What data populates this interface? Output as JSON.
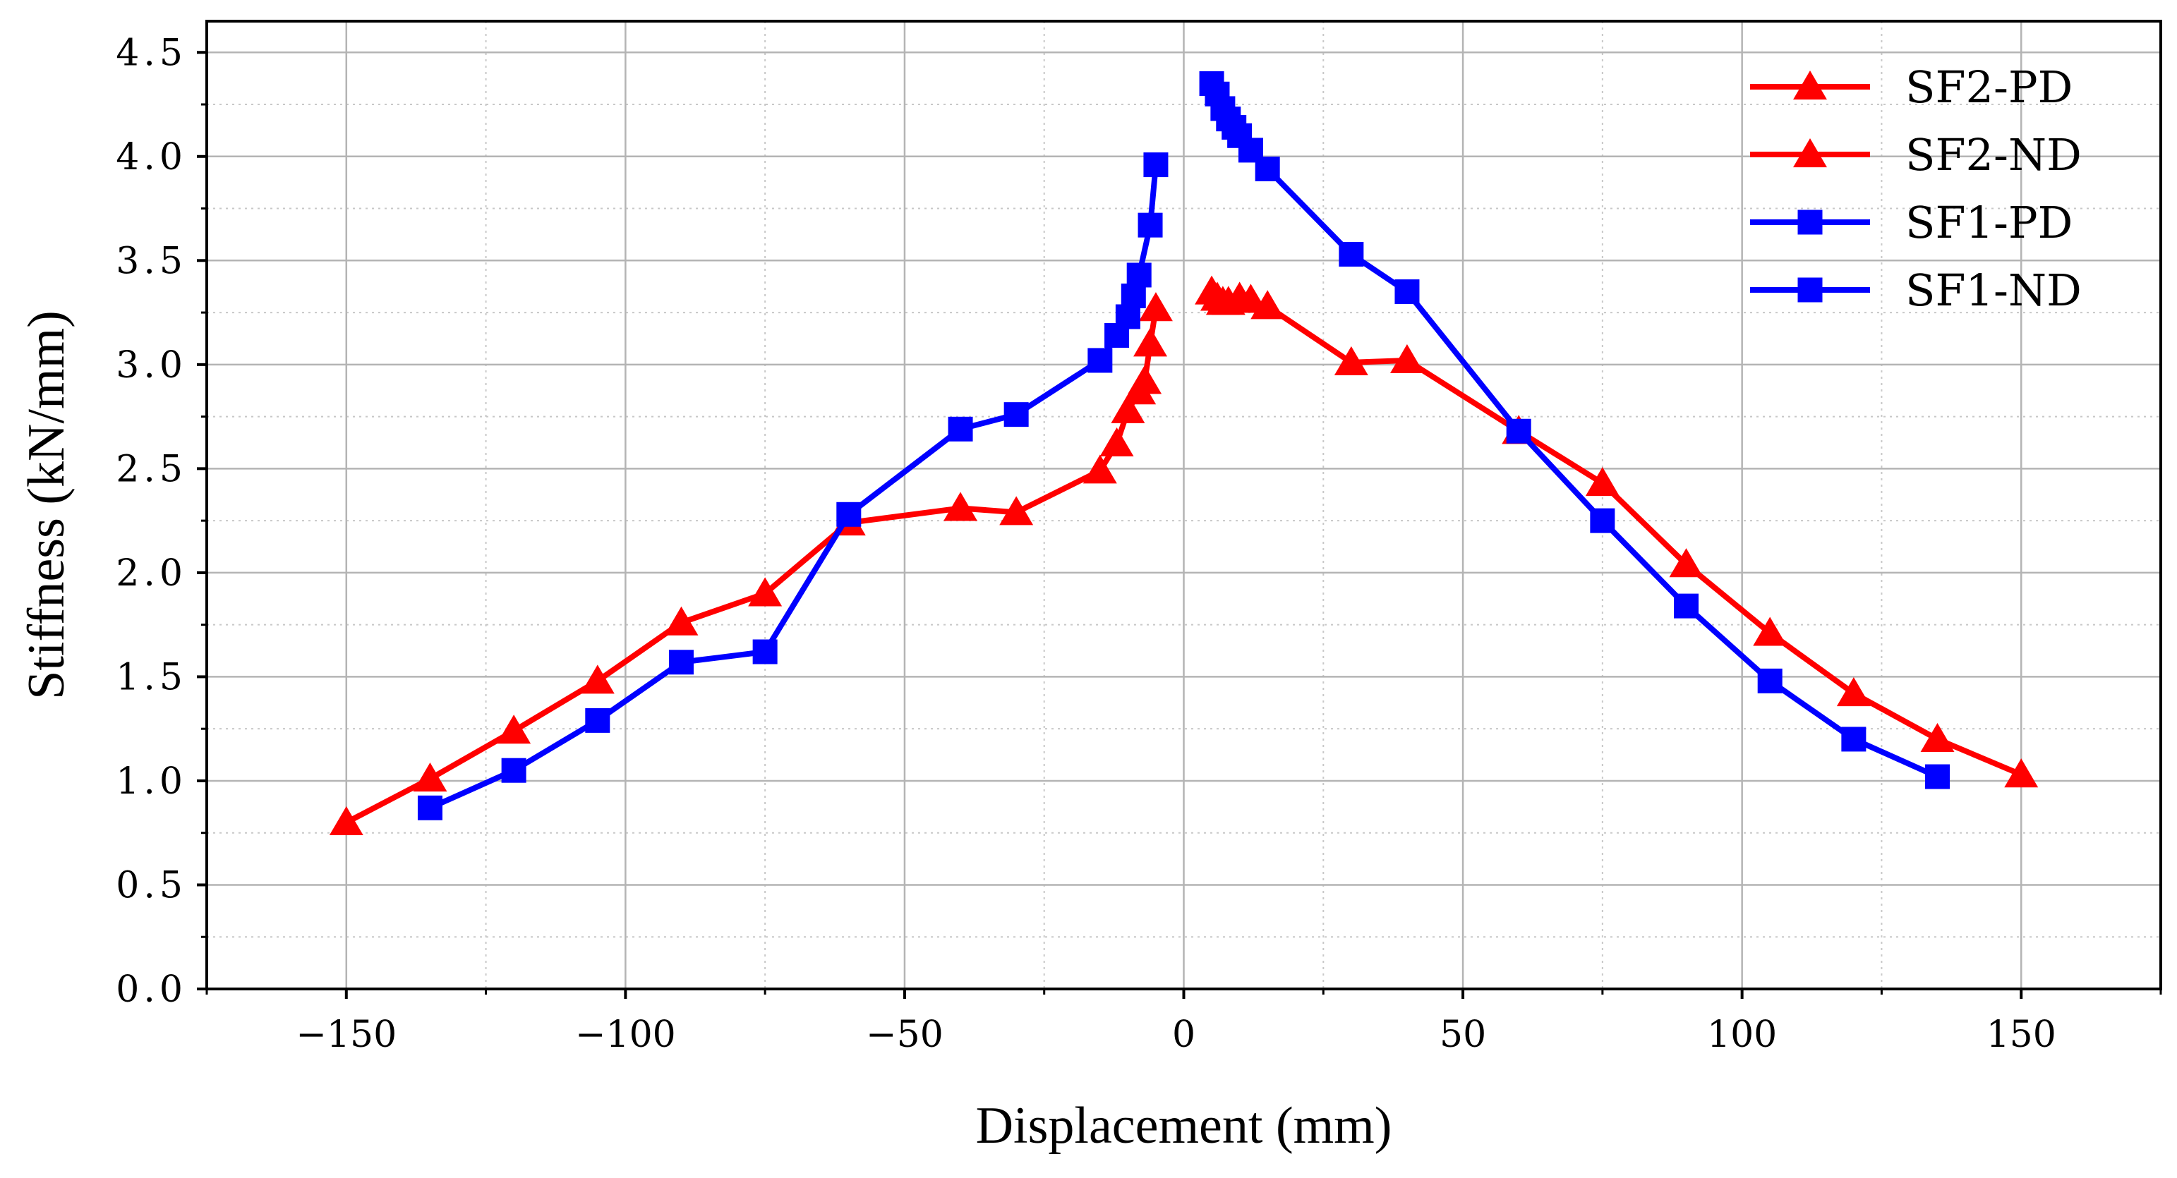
{
  "chart_data": {
    "type": "line",
    "title": "",
    "xlabel": "Displacement (mm)",
    "ylabel": "Stiffness (kN/mm)",
    "xlim": [
      -175,
      175
    ],
    "ylim": [
      0,
      4.65
    ],
    "xticks": [
      -150,
      -100,
      -50,
      0,
      50,
      100,
      150
    ],
    "xtick_labels": [
      "−150",
      "−100",
      "−50",
      "0",
      "50",
      "100",
      "150"
    ],
    "yticks": [
      0,
      0.5,
      1,
      1.5,
      2,
      2.5,
      3,
      3.5,
      4,
      4.5
    ],
    "ytick_labels": [
      "0.0",
      "0.5",
      "1.0",
      "1.5",
      "2.0",
      "2.5",
      "3.0",
      "3.5",
      "4.0",
      "4.5"
    ],
    "grid": true,
    "legend_position": "top-right",
    "series": [
      {
        "name": "SF2-PD",
        "color": "#ff0000",
        "marker": "triangle",
        "x": [
          5,
          6,
          7,
          8,
          10,
          12,
          15,
          30,
          40,
          60,
          75,
          90,
          105,
          120,
          135,
          150
        ],
        "y": [
          3.35,
          3.32,
          3.3,
          3.3,
          3.32,
          3.31,
          3.28,
          3.01,
          3.02,
          2.68,
          2.43,
          2.04,
          1.71,
          1.42,
          1.2,
          1.03
        ]
      },
      {
        "name": "SF2-ND",
        "color": "#ff0000",
        "marker": "triangle",
        "x": [
          -5,
          -6,
          -7,
          -8,
          -10,
          -12,
          -15,
          -30,
          -40,
          -60,
          -75,
          -90,
          -105,
          -120,
          -135,
          -150
        ],
        "y": [
          3.27,
          3.1,
          2.92,
          2.87,
          2.78,
          2.62,
          2.49,
          2.29,
          2.31,
          2.24,
          1.9,
          1.76,
          1.48,
          1.24,
          1.01,
          0.8
        ]
      },
      {
        "name": "SF1-PD",
        "color": "#0000ff",
        "marker": "square",
        "x": [
          5,
          6,
          7,
          8,
          9,
          10,
          12,
          15,
          30,
          40,
          60,
          75,
          90,
          105,
          120,
          135
        ],
        "y": [
          4.35,
          4.3,
          4.23,
          4.18,
          4.14,
          4.1,
          4.03,
          3.94,
          3.53,
          3.35,
          2.68,
          2.25,
          1.84,
          1.48,
          1.2,
          1.02
        ]
      },
      {
        "name": "SF1-ND",
        "color": "#0000ff",
        "marker": "square",
        "x": [
          -5,
          -6,
          -8,
          -9,
          -10,
          -12,
          -15,
          -30,
          -40,
          -60,
          -75,
          -90,
          -105,
          -120,
          -135
        ],
        "y": [
          3.96,
          3.67,
          3.43,
          3.33,
          3.23,
          3.14,
          3.02,
          2.76,
          2.69,
          2.28,
          1.62,
          1.57,
          1.29,
          1.05,
          0.87
        ]
      }
    ]
  }
}
